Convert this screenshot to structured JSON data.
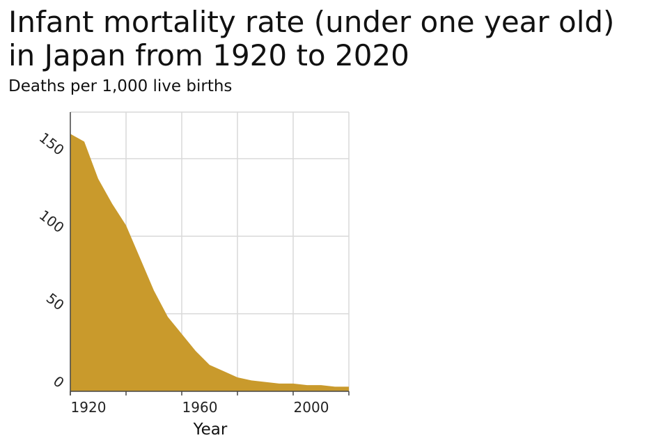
{
  "chart_data": {
    "type": "area",
    "title": "Infant mortality rate (under one year old) in Japan from 1920 to 2020",
    "subtitle": "Deaths per 1,000 live births",
    "xlabel": "Year",
    "ylabel": "",
    "xlim": [
      1920,
      2020
    ],
    "ylim": [
      0,
      180
    ],
    "x_ticks": [
      1920,
      1960,
      2000
    ],
    "y_ticks": [
      0,
      50,
      100,
      150
    ],
    "grid": true,
    "fill_color": "#c99a2c",
    "series": [
      {
        "x": [
          1920,
          1925,
          1930,
          1935,
          1940,
          1945,
          1950,
          1955,
          1960,
          1965,
          1970,
          1975,
          1980,
          1985,
          1990,
          1995,
          2000,
          2005,
          2010,
          2015,
          2020
        ],
        "values": [
          166,
          161,
          137,
          121,
          107,
          86,
          65,
          48,
          37,
          26,
          17,
          13,
          9,
          7,
          6,
          5,
          5,
          4,
          4,
          3,
          3
        ]
      }
    ]
  }
}
